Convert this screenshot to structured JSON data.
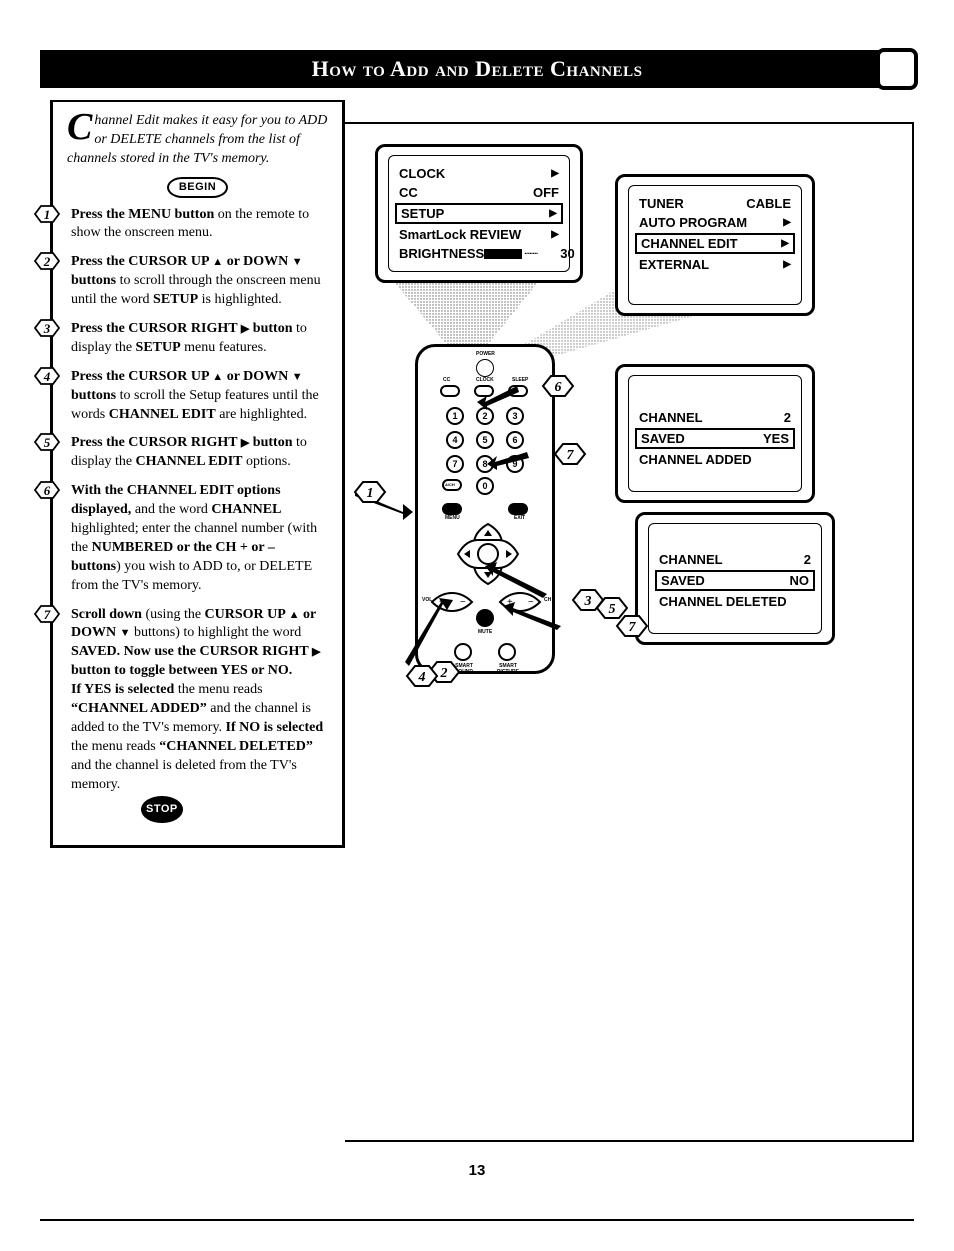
{
  "title": "How to Add and Delete Channels",
  "page_number": "13",
  "intro_first_char": "C",
  "intro_rest": "hannel Edit makes it easy for you to ADD or DELETE channels from the list of channels stored in the TV's memory.",
  "begin_label": "BEGIN",
  "stop_label": "STOP",
  "steps": [
    {
      "n": "1",
      "html": "<b>Press the MENU button</b> on the remote to show the onscreen menu."
    },
    {
      "n": "2",
      "html": "<b>Press the CURSOR UP <span class='tri'>▲</span> or DOWN <span class='tri'>▼</span> buttons</b> to scroll through the onscreen menu until the word <b>SETUP</b> is highlighted."
    },
    {
      "n": "3",
      "html": "<b>Press the CURSOR RIGHT <span class='tri'>▶</span> button</b> to display the <b>SETUP</b> menu features."
    },
    {
      "n": "4",
      "html": "<b>Press the CURSOR UP <span class='tri'>▲</span> or DOWN <span class='tri'>▼</span> buttons</b> to scroll the Setup features until the words <b>CHANNEL EDIT</b> are highlighted."
    },
    {
      "n": "5",
      "html": "<b>Press the CURSOR RIGHT <span class='tri'>▶</span> button</b> to display the <b>CHANNEL EDIT</b> options."
    },
    {
      "n": "6",
      "html": "<b>With the CHANNEL EDIT options displayed,</b> and the word <b>CHANNEL</b> highlighted; enter the channel number (with the <b>NUMBERED or the CH + or – buttons</b>) you wish to ADD to, or DELETE from the TV's memory."
    },
    {
      "n": "7",
      "html": "<b>Scroll down</b> (using the <b>CURSOR UP <span class='tri'>▲</span> or DOWN <span class='tri'>▼</span></b> buttons) to highlight the word <b>SAVED. Now use the CURSOR RIGHT <span class='tri'>▶</span> button to toggle between YES or NO.</b><br><b>If YES is selected</b> the menu reads <b>&ldquo;CHANNEL ADDED&rdquo;</b> and the channel is added to the TV's memory. <b>If NO is selected</b> the menu reads <b>&ldquo;CHANNEL DELETED&rdquo;</b> and the channel is deleted from the TV's memory."
    }
  ],
  "osd1": {
    "rows": [
      {
        "l": "CLOCK",
        "r": "▶",
        "boxed": false
      },
      {
        "l": "CC",
        "r": "OFF",
        "boxed": false
      },
      {
        "l": "SETUP",
        "r": "▶",
        "boxed": true
      },
      {
        "l": "SmartLock REVIEW",
        "r": "▶",
        "boxed": false
      }
    ],
    "brightness_label": "BRIGHTNESS",
    "brightness_value": "30"
  },
  "osd2": {
    "rows": [
      {
        "l": "TUNER",
        "r": "CABLE",
        "boxed": false
      },
      {
        "l": "AUTO PROGRAM",
        "r": "▶",
        "boxed": false
      },
      {
        "l": "CHANNEL EDIT",
        "r": "▶",
        "boxed": true
      },
      {
        "l": "EXTERNAL",
        "r": "▶",
        "boxed": false
      }
    ]
  },
  "osd3": {
    "rows": [
      {
        "l": "CHANNEL",
        "r": "2",
        "boxed": false
      },
      {
        "l": "SAVED",
        "r": "YES",
        "boxed": true
      }
    ],
    "status": "CHANNEL ADDED"
  },
  "osd4": {
    "rows": [
      {
        "l": "CHANNEL",
        "r": "2",
        "boxed": false
      },
      {
        "l": "SAVED",
        "r": "NO",
        "boxed": true
      }
    ],
    "status": "CHANNEL DELETED"
  },
  "remote_labels": {
    "power": "POWER",
    "cc": "CC",
    "clock": "CLOCK",
    "sleep": "SLEEP",
    "vol": "VOL",
    "ch": "CH",
    "mute": "MUTE",
    "menu": "MENU",
    "exit": "EXIT",
    "avch": "A/CH",
    "smart_sound": "SMART\nSOUND",
    "smart_picture": "SMART\nPICTURE"
  },
  "callouts": [
    "1",
    "2",
    "3",
    "4",
    "5",
    "6",
    "7"
  ]
}
